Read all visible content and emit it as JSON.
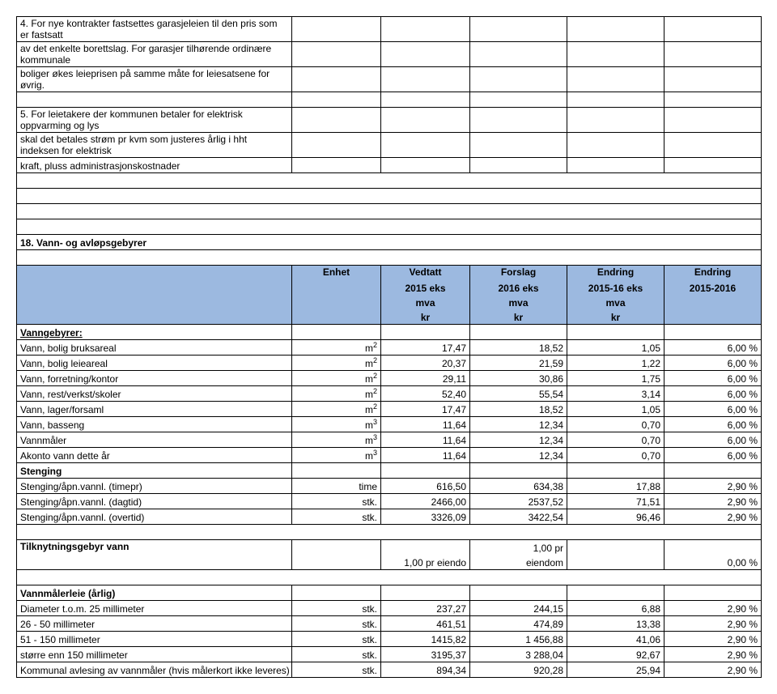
{
  "intro": {
    "line1": "      4.    For nye kontrakter fastsettes garasjeleien til den pris som er fastsatt",
    "line2": "         av det enkelte borettslag. For garasjer tilhørende ordinære kommunale",
    "line3": "         boliger økes leieprisen på samme måte for leiesatsene for øvrig.",
    "line4": "",
    "line5": "      5.    For leietakere der kommunen betaler for elektrisk oppvarming og lys",
    "line6": "         skal det betales strøm pr kvm som justeres årlig i hht indeksen for elektrisk",
    "line7": "         kraft, pluss administrasjonskostnader"
  },
  "section_title": "18. Vann- og avløpsgebyrer",
  "headers": {
    "c2_l1": "Enhet",
    "c3_l1": "Vedtatt",
    "c3_l2": "2015 eks",
    "c3_l3": "mva",
    "c3_l4": "kr",
    "c4_l1": "Forslag",
    "c4_l2": "2016 eks",
    "c4_l3": "mva",
    "c4_l4": "kr",
    "c5_l1": "Endring",
    "c5_l2": "2015-16 eks",
    "c5_l3": "mva",
    "c5_l4": "kr",
    "c6_l1": "Endring",
    "c6_l2": "2015-2016"
  },
  "vann_label": "Vanngebyrer:",
  "rows": [
    {
      "label": "Vann, bolig bruksareal",
      "enhet": "m",
      "sup": "2",
      "v": "17,47",
      "f": "18,52",
      "e1": "1,05",
      "e2": "6,00 %"
    },
    {
      "label": "Vann, bolig leieareal",
      "enhet": "m",
      "sup": "2",
      "v": "20,37",
      "f": "21,59",
      "e1": "1,22",
      "e2": "6,00 %"
    },
    {
      "label": "Vann, forretning/kontor",
      "enhet": "m",
      "sup": "2",
      "v": "29,11",
      "f": "30,86",
      "e1": "1,75",
      "e2": "6,00 %"
    },
    {
      "label": "Vann, rest/verkst/skoler",
      "enhet": "m",
      "sup": "2",
      "v": "52,40",
      "f": "55,54",
      "e1": "3,14",
      "e2": "6,00 %"
    },
    {
      "label": "Vann, lager/forsaml",
      "enhet": "m",
      "sup": "2",
      "v": "17,47",
      "f": "18,52",
      "e1": "1,05",
      "e2": "6,00 %"
    },
    {
      "label": "Vann, basseng",
      "enhet": "m",
      "sup": "3",
      "v": "11,64",
      "f": "12,34",
      "e1": "0,70",
      "e2": "6,00 %"
    },
    {
      "label": "Vannmåler",
      "enhet": "m",
      "sup": "3",
      "v": "11,64",
      "f": "12,34",
      "e1": "0,70",
      "e2": "6,00 %"
    },
    {
      "label": "Akonto vann dette år",
      "enhet": "m",
      "sup": "3",
      "v": "11,64",
      "f": "12,34",
      "e1": "0,70",
      "e2": "6,00 %"
    }
  ],
  "stenging_label": "Stenging",
  "stenging_rows": [
    {
      "label": "Stenging/åpn.vannl. (timepr)",
      "enhet": "time",
      "v": "616,50",
      "f": "634,38",
      "e1": "17,88",
      "e2": "2,90 %"
    },
    {
      "label": "Stenging/åpn.vannl. (dagtid)",
      "enhet": "stk.",
      "v": "2466,00",
      "f": "2537,52",
      "e1": "71,51",
      "e2": "2,90 %"
    },
    {
      "label": "Stenging/åpn.vannl. (overtid)",
      "enhet": "stk.",
      "v": "3326,09",
      "f": "3422,54",
      "e1": "96,46",
      "e2": "2,90 %"
    }
  ],
  "tilknytning": {
    "label": "Tilknytningsgebyr vann",
    "v": "1,00 pr eiendo",
    "f_l1": "1,00 pr",
    "f_l2": "eiendom",
    "e2": "0,00 %"
  },
  "diameter_label": "Vannmålerleie (årlig)",
  "diameter_rows": [
    {
      "label": "Diameter t.o.m. 25 millimeter",
      "enhet": "stk.",
      "v": "237,27",
      "f": "244,15",
      "e1": "6,88",
      "e2": "2,90 %"
    },
    {
      "label": "26 - 50 millimeter",
      "enhet": "stk.",
      "v": "461,51",
      "f": "474,89",
      "e1": "13,38",
      "e2": "2,90 %"
    },
    {
      "label": "51 - 150 millimeter",
      "enhet": "stk.",
      "v": "1415,82",
      "f": "1 456,88",
      "e1": "41,06",
      "e2": "2,90 %"
    },
    {
      "label": "større enn 150 millimeter",
      "enhet": "stk.",
      "v": "3195,37",
      "f": "3 288,04",
      "e1": "92,67",
      "e2": "2,90 %"
    },
    {
      "label": "Kommunal avlesing av vannmåler (hvis målerkort ikke leveres)",
      "enhet": "stk.",
      "v": "894,34",
      "f": "920,28",
      "e1": "25,94",
      "e2": "2,90 %"
    }
  ]
}
